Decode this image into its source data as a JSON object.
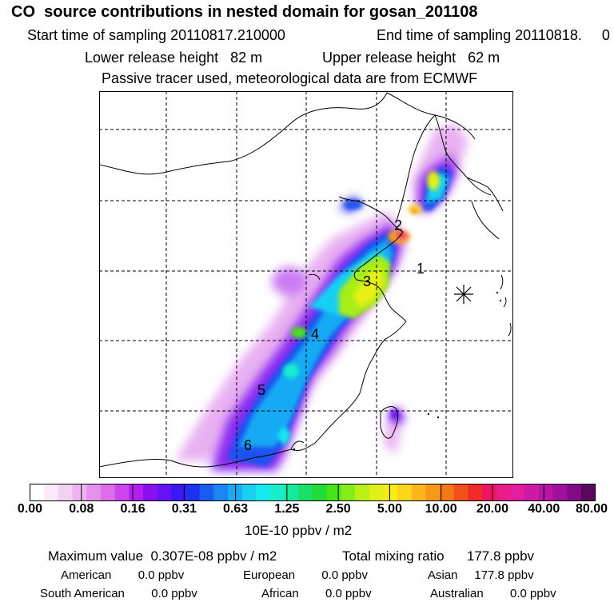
{
  "header": {
    "title": "CO  source contributions in nested domain for gosan_201108",
    "start_label": "Start time of sampling 20110817.210000",
    "end_label": "End time of sampling 20110818.     0",
    "lower_label": "Lower release height   82 m",
    "upper_label": "Upper release height   62 m",
    "tracer_label": "Passive tracer used, meteorological data are from ECMWF"
  },
  "map": {
    "region_labels": [
      "1",
      "2",
      "3",
      "4",
      "5",
      "6"
    ],
    "receptor_marker": "asterisk-marker"
  },
  "colorbar": {
    "ticks": [
      "0.00",
      "0.08",
      "0.16",
      "0.31",
      "0.63",
      "1.25",
      "2.50",
      "5.00",
      "10.00",
      "20.00",
      "40.00",
      "80.00"
    ],
    "units": "10E-10 ppbv / m2",
    "colors": [
      "#ffffff",
      "#fbe8fb",
      "#f5d0f5",
      "#eeb4f1",
      "#e690ee",
      "#dc6eec",
      "#cc46ef",
      "#b31ef2",
      "#8c0ff4",
      "#6612f4",
      "#3a18f2",
      "#1f30f0",
      "#1a5cf0",
      "#1a86f2",
      "#1aaaf4",
      "#18d0f4",
      "#12ecee",
      "#16eecc",
      "#18e89a",
      "#1ae066",
      "#20dc34",
      "#48e418",
      "#86ec18",
      "#b8f018",
      "#e2f018",
      "#f8ec18",
      "#fcd618",
      "#fab818",
      "#f89818",
      "#f47818",
      "#f25018",
      "#f02c2a",
      "#f01464",
      "#ea1c8a",
      "#e21e9e",
      "#d018a6",
      "#ba14a4",
      "#a0109a",
      "#820a86",
      "#5a0660"
    ]
  },
  "stats": {
    "max_label": "Maximum value  0.307E-08 ppbv / m2",
    "total_label": "Total mixing ratio      177.8 ppbv",
    "american": "American        0.0 ppbv",
    "european": "European        0.0 ppbv",
    "asian": "Asian     177.8 ppbv",
    "south_american": "South American        0.0 ppbv",
    "african": "African        0.0 ppbv",
    "australian": "Australian        0.0 ppbv"
  }
}
